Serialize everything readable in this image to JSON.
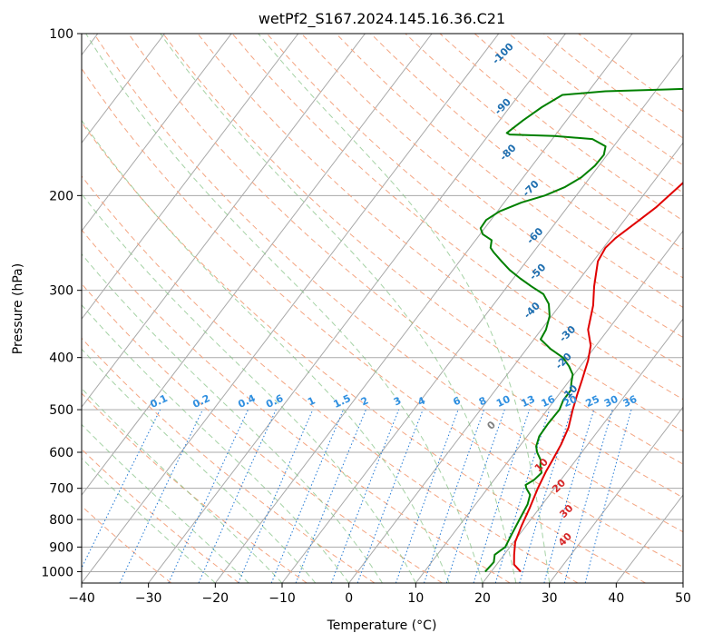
{
  "chart_data": {
    "type": "line",
    "title": "wetPf2_S167.2024.145.16.36.C21",
    "xlabel": "Temperature (°C)",
    "ylabel": "Pressure (hPa)",
    "xlim": [
      -40,
      50
    ],
    "ylim": [
      1050,
      100
    ],
    "y_scale": "log",
    "x_ticks": [
      -40,
      -30,
      -20,
      -10,
      0,
      10,
      20,
      30,
      40,
      50
    ],
    "y_ticks": [
      100,
      200,
      300,
      400,
      500,
      600,
      700,
      800,
      900,
      1000
    ],
    "grid": true,
    "series": [
      {
        "role": "temperature",
        "color": "#e00000",
        "points": [
          [
            24.4,
            1000
          ],
          [
            22.6,
            970
          ],
          [
            21.5,
            930
          ],
          [
            20.2,
            880
          ],
          [
            19.3,
            820
          ],
          [
            18.5,
            760
          ],
          [
            17.5,
            700
          ],
          [
            16.8,
            650
          ],
          [
            16.5,
            620
          ],
          [
            16.0,
            580
          ],
          [
            15.2,
            540
          ],
          [
            13.8,
            500
          ],
          [
            12.8,
            470
          ],
          [
            11.8,
            440
          ],
          [
            10.5,
            405
          ],
          [
            9.2,
            380
          ],
          [
            7.0,
            355
          ],
          [
            5.0,
            320
          ],
          [
            3.0,
            295
          ],
          [
            0.7,
            265
          ],
          [
            0.3,
            250
          ],
          [
            0.7,
            240
          ],
          [
            2.0,
            225
          ],
          [
            3.3,
            210
          ],
          [
            4.5,
            190
          ],
          [
            6.0,
            175
          ],
          [
            7.5,
            165
          ],
          [
            9.5,
            157
          ],
          [
            12.0,
            150
          ],
          [
            14.0,
            143
          ],
          [
            15.2,
            136
          ],
          [
            15.2,
            128
          ],
          [
            14.3,
            118
          ],
          [
            13.8,
            112
          ],
          [
            14.6,
            105
          ],
          [
            16.3,
            100
          ]
        ]
      },
      {
        "role": "dewpoint",
        "color": "#008000",
        "points": [
          [
            19.1,
            1000
          ],
          [
            19.3,
            960
          ],
          [
            18.6,
            930
          ],
          [
            19.3,
            900
          ],
          [
            18.8,
            850
          ],
          [
            18.3,
            800
          ],
          [
            17.8,
            750
          ],
          [
            17.1,
            720
          ],
          [
            15.8,
            700
          ],
          [
            15.3,
            690
          ],
          [
            16.0,
            675
          ],
          [
            16.3,
            655
          ],
          [
            15.3,
            635
          ],
          [
            14.7,
            620
          ],
          [
            13.3,
            600
          ],
          [
            12.5,
            585
          ],
          [
            11.8,
            560
          ],
          [
            11.7,
            530
          ],
          [
            11.8,
            500
          ],
          [
            11.3,
            480
          ],
          [
            11.3,
            460
          ],
          [
            10.5,
            445
          ],
          [
            9.8,
            430
          ],
          [
            8.3,
            415
          ],
          [
            6.4,
            400
          ],
          [
            3.5,
            385
          ],
          [
            1.0,
            370
          ],
          [
            0.7,
            355
          ],
          [
            -0.3,
            335
          ],
          [
            -1.8,
            318
          ],
          [
            -3.7,
            305
          ],
          [
            -6.4,
            295
          ],
          [
            -9.0,
            285
          ],
          [
            -11.5,
            275
          ],
          [
            -13.7,
            265
          ],
          [
            -15.9,
            255
          ],
          [
            -16.9,
            250
          ],
          [
            -17.6,
            242
          ],
          [
            -19.6,
            236
          ],
          [
            -20.6,
            230
          ],
          [
            -20.7,
            222
          ],
          [
            -19.7,
            214
          ],
          [
            -17.4,
            206
          ],
          [
            -14.7,
            200
          ],
          [
            -12.7,
            193
          ],
          [
            -11.3,
            185
          ],
          [
            -10.6,
            176
          ],
          [
            -10.5,
            168
          ],
          [
            -11.2,
            162
          ],
          [
            -14.0,
            157
          ],
          [
            -20.0,
            155
          ],
          [
            -26.9,
            154
          ],
          [
            -27.5,
            153
          ],
          [
            -26.5,
            145
          ],
          [
            -25.2,
            137
          ],
          [
            -23.5,
            130
          ],
          [
            -17.5,
            128
          ],
          [
            -8.5,
            127
          ],
          [
            -1.5,
            126
          ],
          [
            -0.2,
            120
          ],
          [
            -0.1,
            111
          ],
          [
            1.5,
            105
          ],
          [
            2.8,
            100
          ]
        ]
      }
    ],
    "annotations": {
      "dry_adiabats": [
        -30,
        -20,
        -10,
        0,
        10,
        20,
        30,
        40,
        50,
        60,
        70,
        80,
        90,
        100,
        110,
        120,
        130,
        140,
        150,
        160,
        170,
        180,
        190,
        200
      ],
      "moist_adiabats_labels": [
        "-100",
        "-90",
        "-80",
        "-70",
        "-60",
        "-50",
        "-40",
        "-30",
        "-20",
        "-10",
        "0",
        "10",
        "20",
        "30",
        "40"
      ],
      "mixing_ratio_labels": [
        "0.1",
        "0.2",
        "0.4",
        "0.6",
        "1",
        "1.5",
        "2",
        "3",
        "4",
        "6",
        "8",
        "10",
        "13",
        "16",
        "20",
        "25",
        "30",
        "36"
      ],
      "colors": {
        "isotherm": "#808080",
        "dry_adiabat": "#f4a582",
        "moist_adiabat": "#7fbf7f",
        "mixing_ratio": "#1f77b4",
        "wetbulb_label": "#1f6fb0",
        "theta_label": "#d62728"
      }
    }
  }
}
